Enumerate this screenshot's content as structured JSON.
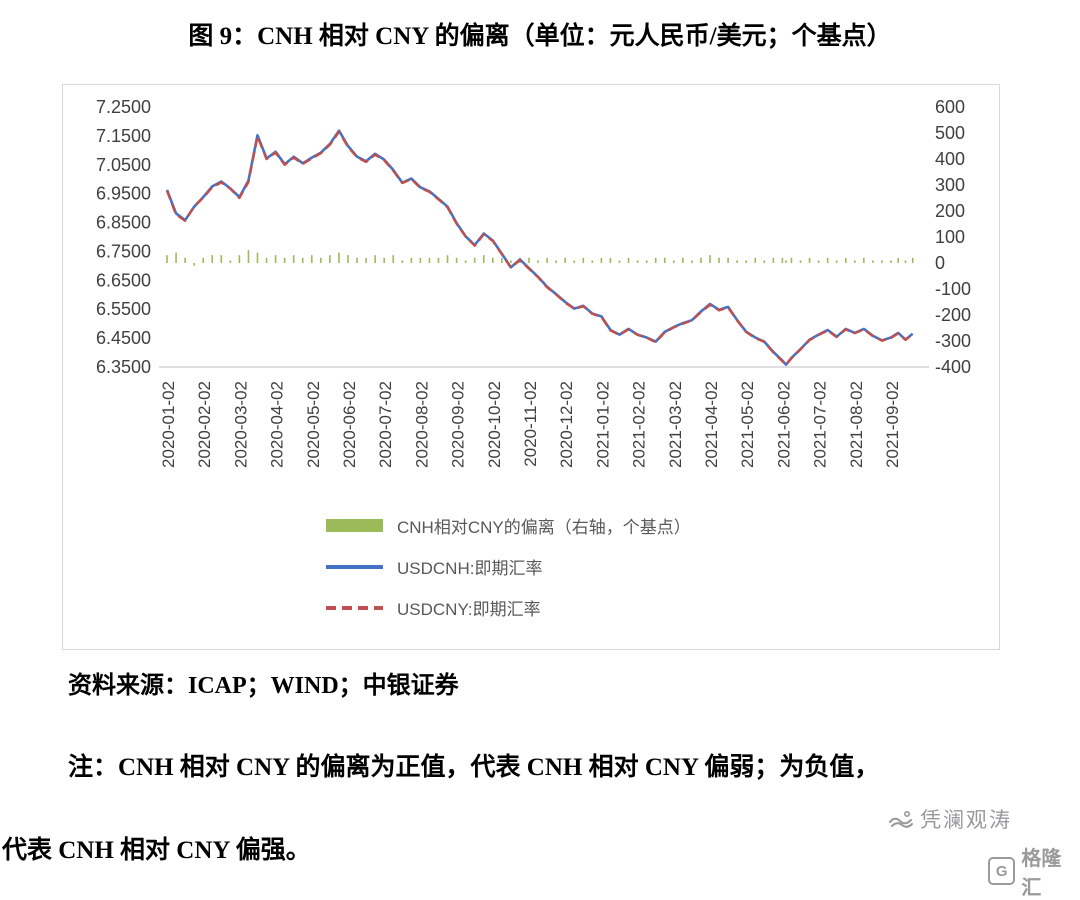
{
  "title": "图 9：CNH 相对 CNY 的偏离（单位：元人民币/美元；个基点）",
  "source": "资料来源：ICAP；WIND；中银证券",
  "note_line1": "注：CNH 相对 CNY 的偏离为正值，代表 CNH 相对 CNY 偏弱；为负值，",
  "note_line2": "代表 CNH 相对 CNY 偏强。",
  "watermark": {
    "name": "凭澜观涛",
    "logo_letter": "G",
    "logo_text": "格隆汇"
  },
  "chart_data": {
    "type": "combo-line-bar",
    "grid": false,
    "legend_position": "bottom",
    "x_axis_unit": "date",
    "x_tick_labels": [
      "2020-01-02",
      "2020-02-02",
      "2020-03-02",
      "2020-04-02",
      "2020-05-02",
      "2020-06-02",
      "2020-07-02",
      "2020-08-02",
      "2020-09-02",
      "2020-10-02",
      "2020-11-02",
      "2020-12-02",
      "2021-01-02",
      "2021-02-02",
      "2021-03-02",
      "2021-04-02",
      "2021-05-02",
      "2021-06-02",
      "2021-07-02",
      "2021-08-02",
      "2021-09-02"
    ],
    "left_axis": {
      "min": 6.35,
      "max": 7.25,
      "step": 0.1,
      "tick_labels": [
        "7.2500",
        "7.1500",
        "7.0500",
        "6.9500",
        "6.8500",
        "6.7500",
        "6.6500",
        "6.5500",
        "6.4500",
        "6.3500"
      ]
    },
    "right_axis": {
      "min": -400,
      "max": 600,
      "step": 100,
      "tick_labels": [
        "600",
        "500",
        "400",
        "300",
        "200",
        "100",
        "0",
        "-100",
        "-200",
        "-300",
        "-400"
      ]
    },
    "x_months": [
      0,
      0.25,
      0.5,
      0.75,
      1,
      1.25,
      1.5,
      1.75,
      2,
      2.25,
      2.5,
      2.75,
      3,
      3.25,
      3.5,
      3.75,
      4,
      4.25,
      4.5,
      4.75,
      5,
      5.25,
      5.5,
      5.75,
      6,
      6.25,
      6.5,
      6.75,
      7,
      7.25,
      7.5,
      7.75,
      8,
      8.25,
      8.5,
      8.75,
      9,
      9.25,
      9.5,
      9.75,
      10,
      10.25,
      10.5,
      10.75,
      11,
      11.25,
      11.5,
      11.75,
      12,
      12.25,
      12.5,
      12.75,
      13,
      13.25,
      13.5,
      13.75,
      14,
      14.25,
      14.5,
      14.75,
      15,
      15.25,
      15.5,
      15.75,
      16,
      16.25,
      16.5,
      16.75,
      17,
      17.1,
      17.25,
      17.5,
      17.75,
      18,
      18.25,
      18.5,
      18.75,
      19,
      19.25,
      19.5,
      19.75,
      20,
      20.2,
      20.4,
      20.6
    ],
    "series": [
      {
        "name": "CNH相对CNY的偏离（右轴，个基点）",
        "type": "bar",
        "axis": "right",
        "color": "#9BBB59",
        "values": [
          30,
          40,
          20,
          -10,
          20,
          30,
          30,
          10,
          30,
          50,
          40,
          20,
          30,
          20,
          30,
          20,
          30,
          20,
          30,
          40,
          30,
          20,
          20,
          30,
          20,
          30,
          10,
          20,
          20,
          20,
          20,
          30,
          20,
          10,
          20,
          30,
          20,
          20,
          10,
          20,
          20,
          10,
          20,
          10,
          20,
          10,
          20,
          10,
          20,
          20,
          10,
          20,
          10,
          10,
          20,
          20,
          10,
          20,
          10,
          20,
          30,
          20,
          20,
          10,
          10,
          20,
          10,
          20,
          20,
          10,
          20,
          10,
          20,
          10,
          20,
          10,
          20,
          10,
          20,
          10,
          10,
          10,
          20,
          10,
          20
        ]
      },
      {
        "name": "USDCNH:即期汇率",
        "type": "line",
        "axis": "left",
        "color": "#4472C4",
        "values": [
          6.963,
          6.882,
          6.858,
          6.905,
          6.938,
          6.975,
          6.992,
          6.968,
          6.938,
          6.995,
          7.152,
          7.072,
          7.095,
          7.052,
          7.078,
          7.055,
          7.075,
          7.092,
          7.122,
          7.168,
          7.115,
          7.078,
          7.062,
          7.088,
          7.068,
          7.032,
          6.988,
          7.002,
          6.972,
          6.958,
          6.932,
          6.905,
          6.848,
          6.802,
          6.772,
          6.812,
          6.788,
          6.742,
          6.695,
          6.722,
          6.692,
          6.662,
          6.628,
          6.602,
          6.575,
          6.552,
          6.562,
          6.535,
          6.525,
          6.478,
          6.462,
          6.482,
          6.462,
          6.452,
          6.438,
          6.472,
          6.488,
          6.502,
          6.512,
          6.542,
          6.568,
          6.548,
          6.558,
          6.512,
          6.472,
          6.452,
          6.438,
          6.402,
          6.372,
          6.358,
          6.382,
          6.412,
          6.445,
          6.462,
          6.478,
          6.455,
          6.482,
          6.468,
          6.482,
          6.458,
          6.442,
          6.452,
          6.468,
          6.445,
          6.465
        ]
      },
      {
        "name": "USDCNY:即期汇率",
        "type": "line",
        "dashed": true,
        "axis": "left",
        "color": "#C0504D",
        "values": [
          6.96,
          6.878,
          6.856,
          6.906,
          6.936,
          6.972,
          6.989,
          6.967,
          6.935,
          6.99,
          7.148,
          7.07,
          7.092,
          7.05,
          7.075,
          7.053,
          7.072,
          7.09,
          7.119,
          7.164,
          7.112,
          7.076,
          7.06,
          7.085,
          7.066,
          7.029,
          6.987,
          7.0,
          6.97,
          6.956,
          6.93,
          6.902,
          6.846,
          6.801,
          6.77,
          6.809,
          6.786,
          6.74,
          6.694,
          6.72,
          6.69,
          6.661,
          6.626,
          6.601,
          6.573,
          6.551,
          6.56,
          6.534,
          6.523,
          6.476,
          6.461,
          6.48,
          6.461,
          6.451,
          6.436,
          6.47,
          6.487,
          6.5,
          6.511,
          6.54,
          6.565,
          6.546,
          6.556,
          6.511,
          6.471,
          6.45,
          6.437,
          6.4,
          6.37,
          6.357,
          6.38,
          6.411,
          6.443,
          6.461,
          6.476,
          6.454,
          6.48,
          6.467,
          6.48,
          6.457,
          6.441,
          6.451,
          6.466,
          6.444,
          6.463
        ]
      }
    ]
  }
}
